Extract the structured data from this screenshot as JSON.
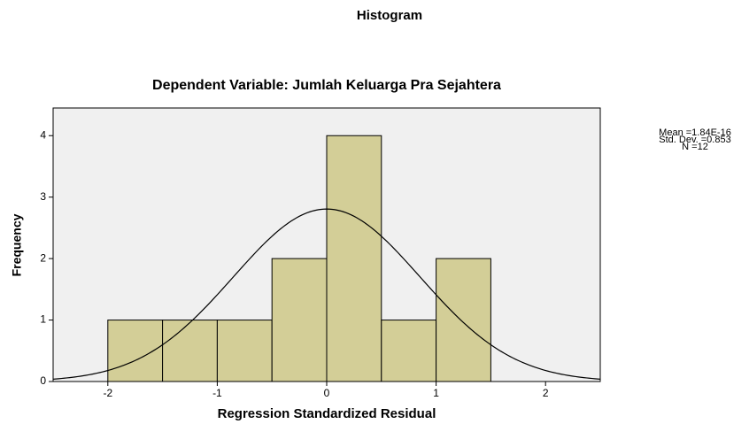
{
  "chart_data": {
    "type": "histogram",
    "title": "Histogram",
    "subtitle": "Dependent Variable: Jumlah Keluarga Pra Sejahtera",
    "x_label": "Regression Standardized Residual",
    "y_label": "Frequency",
    "bins": [
      -2,
      -1.5,
      -1,
      -0.5,
      0,
      0.5,
      1,
      1.5
    ],
    "values": [
      1,
      1,
      1,
      2,
      4,
      1,
      2
    ],
    "color": "#d3ce97",
    "xlim": [
      -2.5,
      2.5
    ],
    "xticks": [
      -2,
      -1,
      0,
      1,
      2
    ],
    "ylim": [
      0,
      4.45
    ],
    "yticks": [
      0,
      1,
      2,
      3,
      4
    ],
    "stats": [
      {
        "value": 1.84e-16,
        "label": "Mean =1.84E-16"
      },
      {
        "value": 0.853,
        "label": "Std. Dev. =0.853"
      },
      {
        "value": 12,
        "label": "N =12"
      }
    ]
  }
}
